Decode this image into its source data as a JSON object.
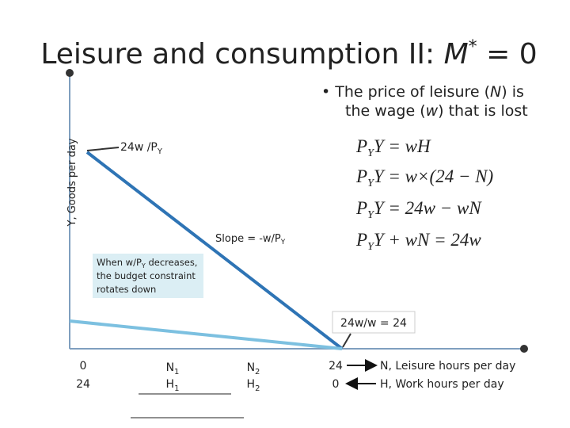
{
  "title": {
    "text": "Leisure and consumption II: ",
    "symbol": "M",
    "sup": "*",
    "rest": " = 0"
  },
  "bullet": {
    "line1": {
      "a": "The price of leisure (",
      "b": "N",
      "c": ") is"
    },
    "line2": {
      "a": "the wage (",
      "b": "w",
      "c": ") that is lost"
    }
  },
  "y_axis_label": "Y, Goods per day",
  "intercept_label": {
    "text": "24w /P",
    "sub": "Y"
  },
  "slope_label": {
    "text": "Slope = -w/P",
    "sub": "Y"
  },
  "note": {
    "line1": {
      "a": "When w/P",
      "sub": "Y",
      "b": " decreases,"
    },
    "line2": "the budget constraint",
    "line3": "rotates down"
  },
  "x_intercept_label": "24w/w = 24",
  "equations": [
    {
      "base": "P",
      "sub": "Y",
      "rest": "Y = wH"
    },
    {
      "base": "P",
      "sub": "Y",
      "rest": "Y = w×(24 − N)"
    },
    {
      "base": "P",
      "sub": "Y",
      "rest": "Y = 24w − wN"
    },
    {
      "base": "P",
      "sub": "Y",
      "rest": "Y + wN = 24w"
    }
  ],
  "x_labels": {
    "row1": [
      {
        "text": "0"
      },
      {
        "text": "N",
        "sub": "1"
      },
      {
        "text": "N",
        "sub": "2"
      },
      {
        "text": "24"
      }
    ],
    "row2": [
      {
        "text": "24"
      },
      {
        "text": "H",
        "sub": "1"
      },
      {
        "text": "H",
        "sub": "2"
      },
      {
        "text": "0"
      }
    ]
  },
  "legend": {
    "leisure": "N, Leisure hours per day",
    "work": "H, Work hours per day"
  }
}
